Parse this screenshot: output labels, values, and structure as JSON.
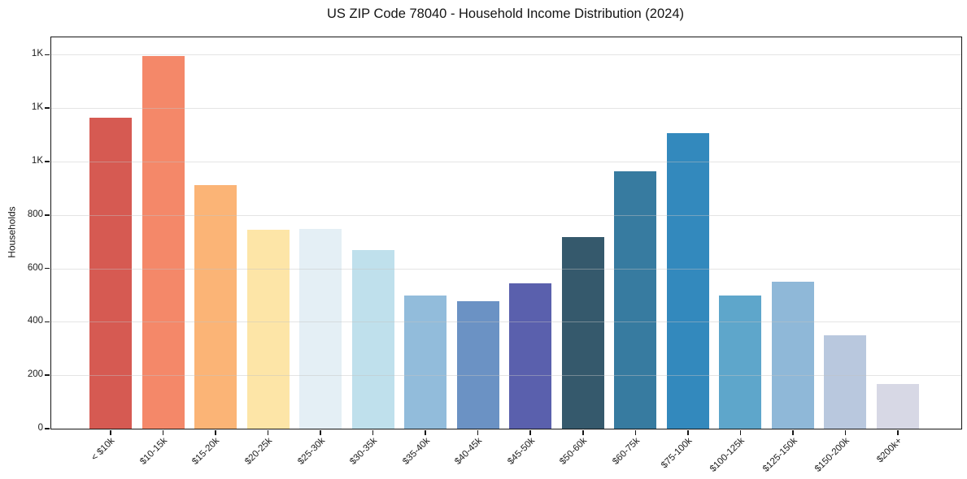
{
  "title": "US ZIP Code 78040 - Household Income Distribution (2024)",
  "chart_data": {
    "type": "bar",
    "title": "US ZIP Code 78040 - Household Income Distribution (2024)",
    "xlabel": "",
    "ylabel": "Households",
    "categories": [
      "< $10k",
      "$10-15k",
      "$15-20k",
      "$20-25k",
      "$25-30k",
      "$30-35k",
      "$35-40k",
      "$40-45k",
      "$45-50k",
      "$50-60k",
      "$60-75k",
      "$75-100k",
      "$100-125k",
      "$125-150k",
      "$150-200k",
      "$200k+"
    ],
    "values": [
      1165,
      1395,
      913,
      746,
      749,
      670,
      497,
      478,
      543,
      716,
      965,
      1105,
      497,
      551,
      351,
      166
    ],
    "bar_colors": [
      "#d65a52",
      "#f48869",
      "#fbb476",
      "#fde5a7",
      "#e4eff5",
      "#bfe0ec",
      "#92bcdb",
      "#6b92c4",
      "#5a60ad",
      "#35596c",
      "#377ba0",
      "#3389bd",
      "#5ea6cb",
      "#8fb8d8",
      "#b9c8de",
      "#d7d8e5"
    ],
    "y_ticks": {
      "values": [
        0,
        200,
        400,
        600,
        800,
        1000,
        1200,
        1400
      ],
      "labels": [
        "0",
        "200",
        "400",
        "600",
        "800",
        "1K",
        "1K",
        "1K"
      ]
    },
    "ylim": [
      0,
      1465
    ],
    "grid": "horizontal-gridlines-on",
    "legend": "none",
    "background_color": "#ffffff",
    "spine_color": "#161616"
  }
}
